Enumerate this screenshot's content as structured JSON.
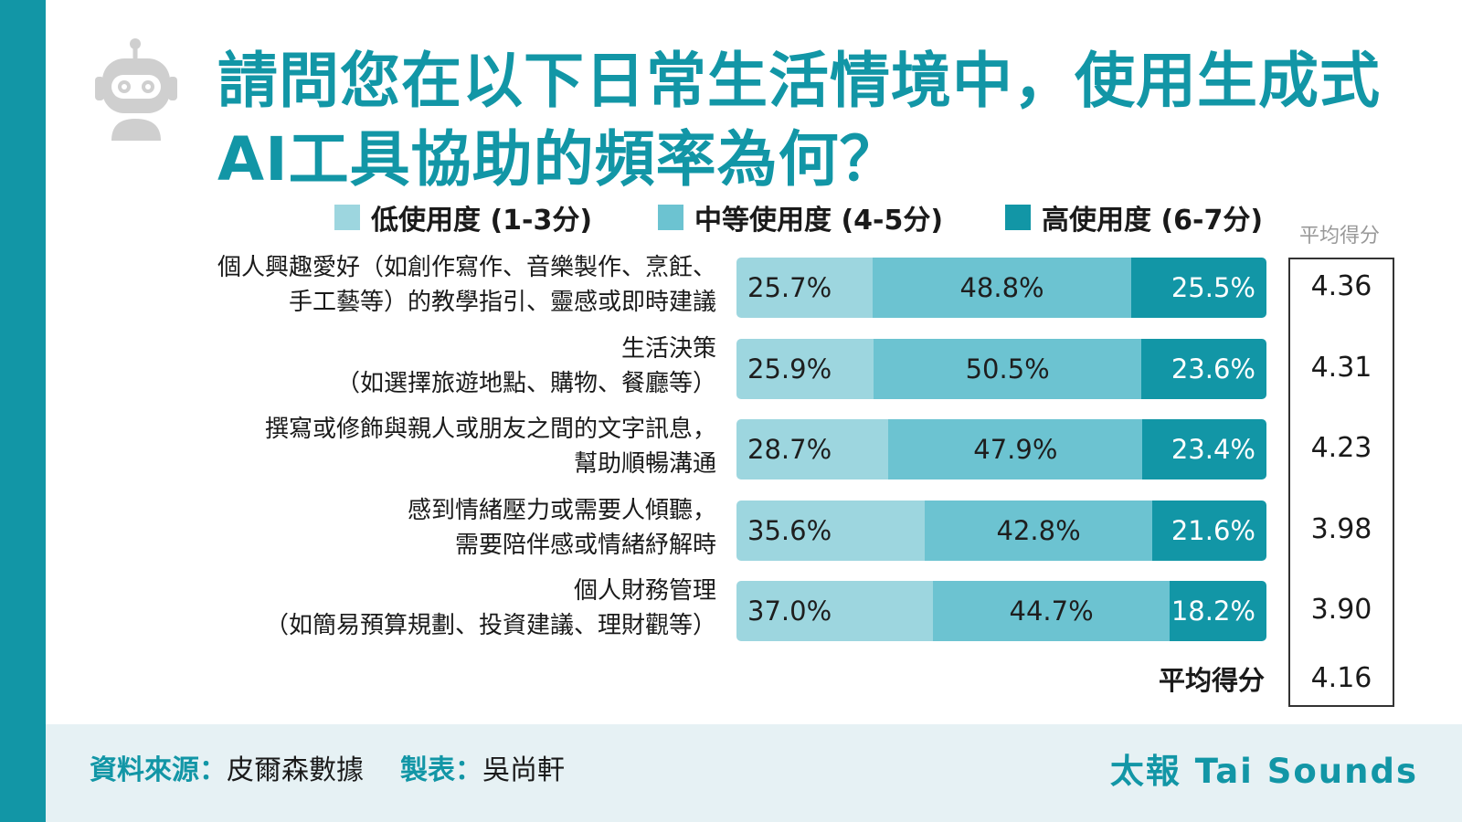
{
  "title": "請問您在以下日常生活情境中，使用生成式AI工具協助的頻率為何？",
  "legend": {
    "low": "低使用度 (1-3分)",
    "mid": "中等使用度 (4-5分)",
    "high": "高使用度 (6-7分)"
  },
  "avg_header": "平均得分",
  "overall_label": "平均得分",
  "overall_score": "4.16",
  "colors": {
    "accent": "#1296a6",
    "low": "#9dd6df",
    "mid": "#6cc3d1",
    "high": "#1296a6"
  },
  "chart_data": {
    "type": "bar",
    "orientation": "horizontal",
    "stacked": true,
    "categories": [
      [
        "個人興趣愛好（如創作寫作、音樂製作、烹飪、",
        "手工藝等）的教學指引、靈感或即時建議"
      ],
      [
        "生活決策",
        "（如選擇旅遊地點、購物、餐廳等）"
      ],
      [
        "撰寫或修飾與親人或朋友之間的文字訊息，",
        "幫助順暢溝通"
      ],
      [
        "感到情緒壓力或需要人傾聽，",
        "需要陪伴感或情緒紓解時"
      ],
      [
        "個人財務管理",
        "（如簡易預算規劃、投資建議、理財觀等）"
      ]
    ],
    "series": [
      {
        "name": "低使用度 (1-3分)",
        "values": [
          25.7,
          25.9,
          28.7,
          35.6,
          37.0
        ],
        "labels": [
          "25.7%",
          "25.9%",
          "28.7%",
          "35.6%",
          "37.0%"
        ]
      },
      {
        "name": "中等使用度 (4-5分)",
        "values": [
          48.8,
          50.5,
          47.9,
          42.8,
          44.7
        ],
        "labels": [
          "48.8%",
          "50.5%",
          "47.9%",
          "42.8%",
          "44.7%"
        ]
      },
      {
        "name": "高使用度 (6-7分)",
        "values": [
          25.5,
          23.6,
          23.4,
          21.6,
          18.2
        ],
        "labels": [
          "25.5%",
          "23.6%",
          "23.4%",
          "21.6%",
          "18.2%"
        ]
      }
    ],
    "avg_scores": [
      "4.36",
      "4.31",
      "4.23",
      "3.98",
      "3.90"
    ],
    "xlim": [
      0,
      100
    ]
  },
  "footer": {
    "source_key": "資料來源：",
    "source_value": "皮爾森數據",
    "maker_key": "製表：",
    "maker_value": "吳尚軒",
    "brand": "太報 Tai Sounds"
  }
}
